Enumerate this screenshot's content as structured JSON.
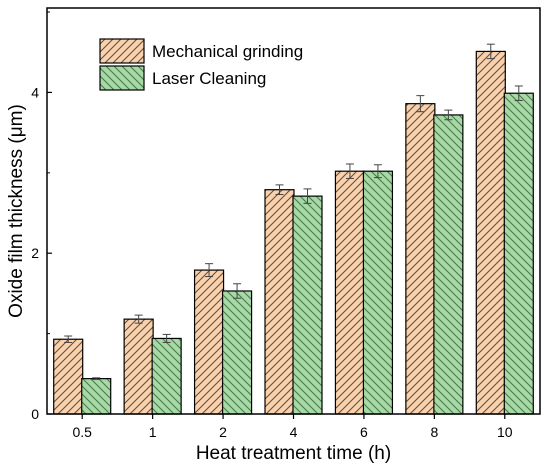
{
  "chart_data": {
    "type": "bar",
    "categories": [
      "0.5",
      "1",
      "2",
      "4",
      "6",
      "8",
      "10"
    ],
    "xlabel": "Heat treatment time (h)",
    "ylabel": "Oxide film thickness (μm)",
    "ylim": [
      0,
      5.05
    ],
    "yticks": [
      0,
      2,
      4
    ],
    "error_bars": true,
    "legend_position": "top-left",
    "grid": false,
    "series": [
      {
        "name": "Mechanical grinding",
        "values": [
          0.93,
          1.18,
          1.79,
          2.79,
          3.02,
          3.86,
          4.51
        ],
        "errors": [
          0.04,
          0.05,
          0.08,
          0.06,
          0.09,
          0.1,
          0.09
        ],
        "fill": "#fcd1aa",
        "hatch": "#555555",
        "hatch_direction": "forward"
      },
      {
        "name": "Laser Cleaning",
        "values": [
          0.44,
          0.94,
          1.53,
          2.71,
          3.02,
          3.72,
          3.99
        ],
        "errors": [
          0.01,
          0.05,
          0.09,
          0.09,
          0.08,
          0.06,
          0.09
        ],
        "fill": "#a6d9a6",
        "hatch": "#4a7a4a",
        "hatch_direction": "backward"
      }
    ]
  }
}
